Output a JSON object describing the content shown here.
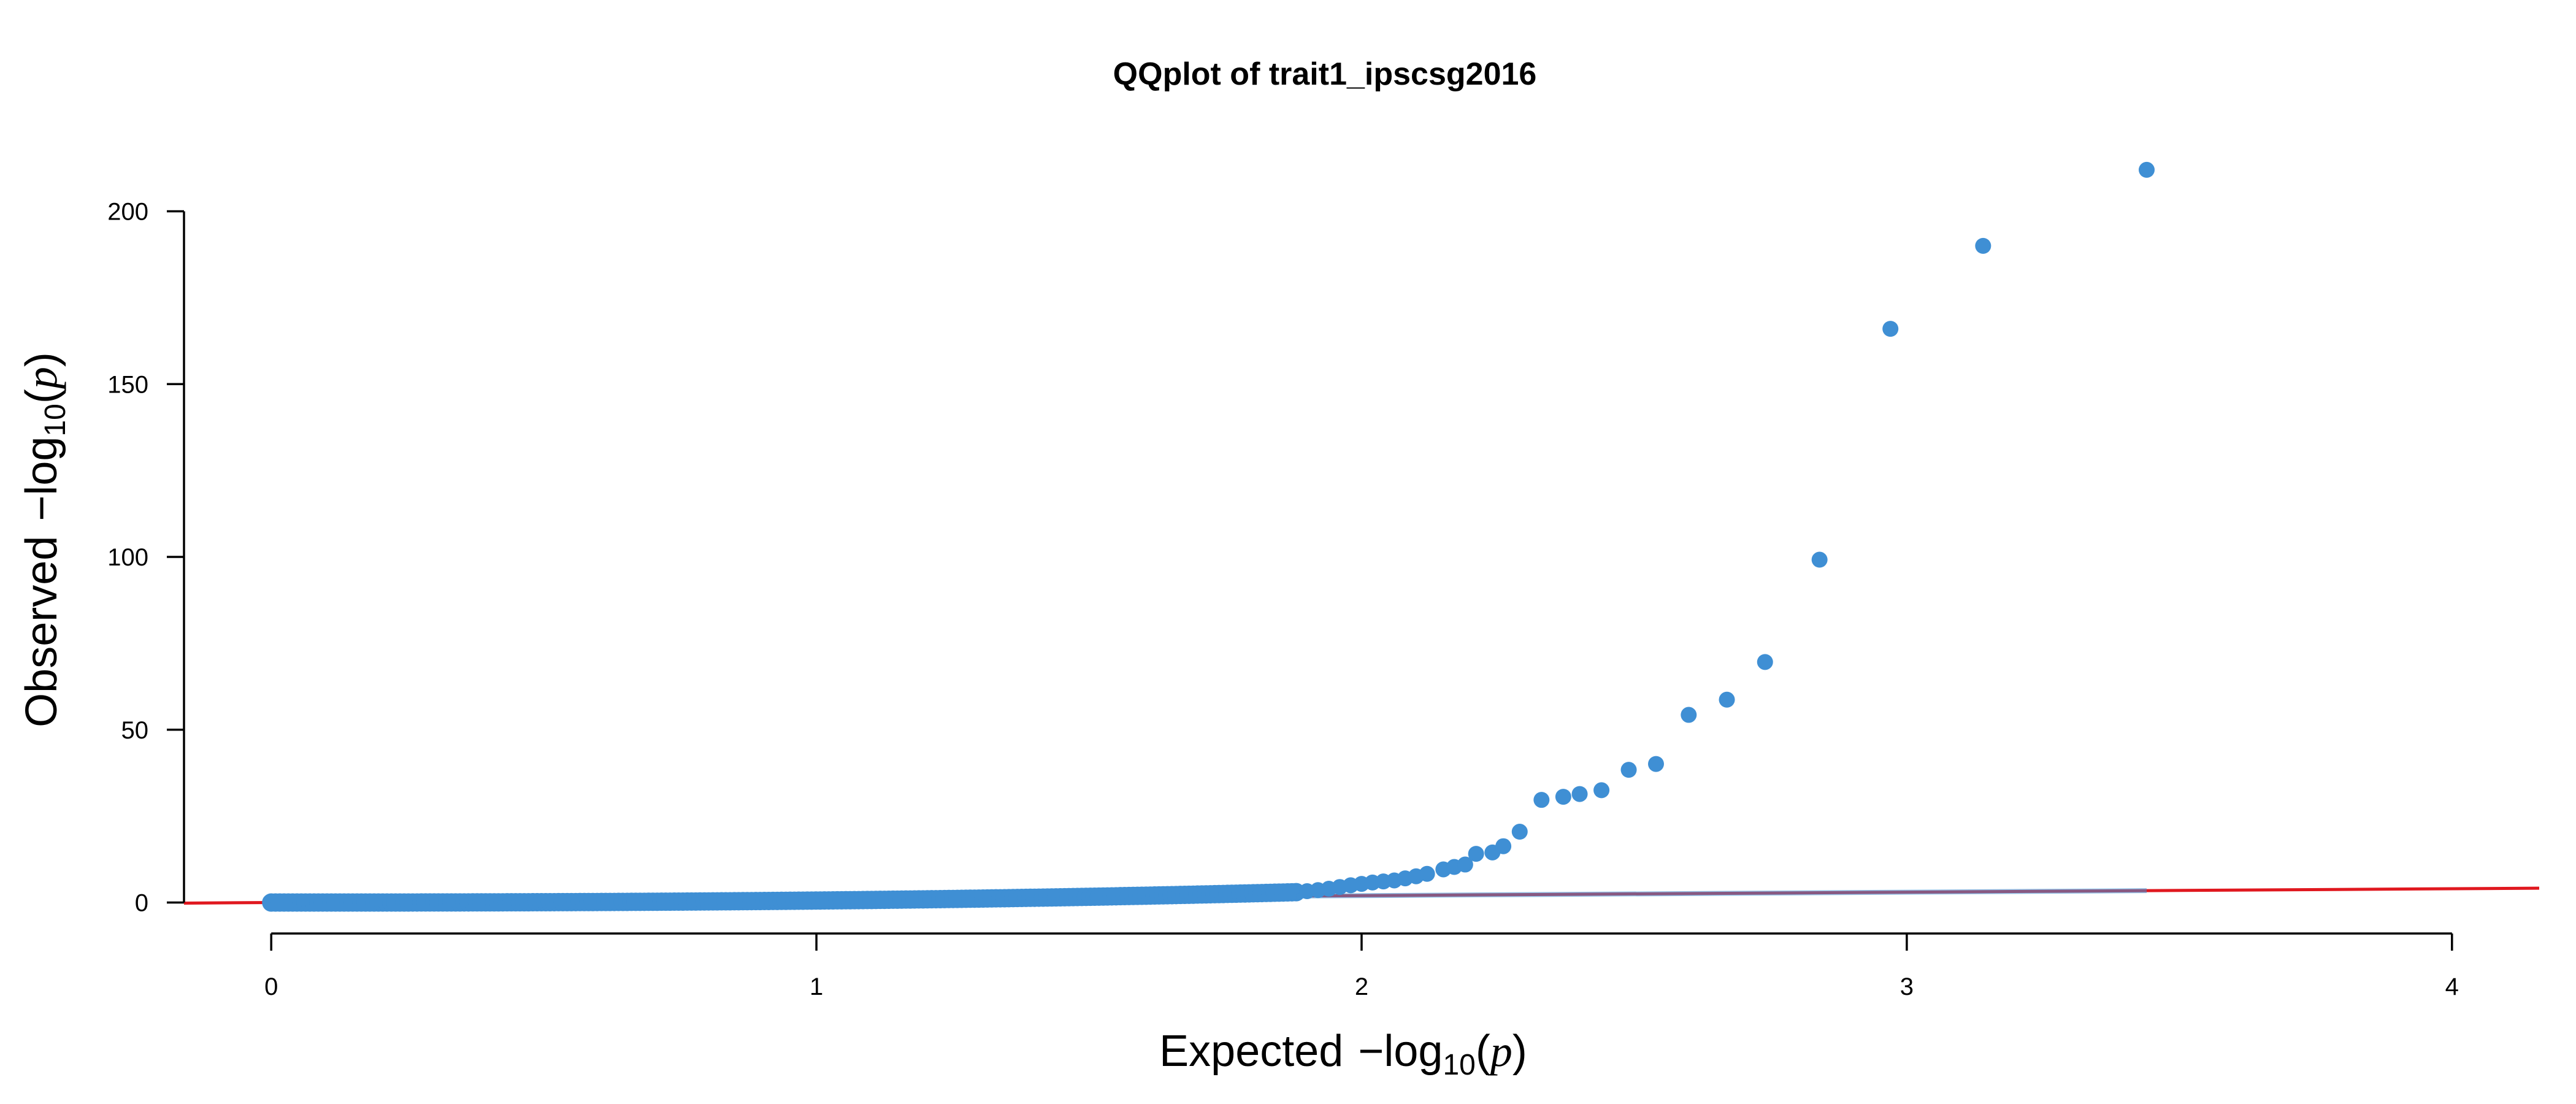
{
  "chart_data": {
    "type": "scatter",
    "title": "QQplot of trait1_ipscsg2016",
    "xlabel": {
      "prefix": "Expected",
      "fn": "log",
      "sub": "10",
      "var": "p"
    },
    "ylabel": {
      "prefix": "Observed",
      "fn": "log",
      "sub": "10",
      "var": "p"
    },
    "xlim": [
      -0.16,
      4.16
    ],
    "ylim": [
      -1.5,
      215
    ],
    "x_ticks": [
      "0",
      "1",
      "2",
      "3",
      "4"
    ],
    "y_ticks": [
      "0",
      "50",
      "100",
      "150",
      "200"
    ],
    "x_tick_values": [
      0,
      1,
      2,
      3,
      4
    ],
    "y_tick_values": [
      0,
      50,
      100,
      150,
      200
    ],
    "point_color": "#3F8FD4",
    "reference_line_color": "#E0181F",
    "grid": false,
    "legend": "none",
    "reference_line": {
      "x": [
        -0.16,
        4.16
      ],
      "y": [
        -0.16,
        4.16
      ]
    },
    "dense_segment": {
      "x_start": 0,
      "x_end": 1.88,
      "y_start": 0,
      "y_end": 3.0,
      "curve_exponent": 2.6,
      "count": 240
    },
    "expected_band": {
      "x": [
        1.88,
        3.44
      ],
      "y": [
        1.88,
        3.44
      ]
    },
    "points": [
      {
        "x": 1.9,
        "y": 3.3
      },
      {
        "x": 1.92,
        "y": 3.6
      },
      {
        "x": 1.94,
        "y": 4.0
      },
      {
        "x": 1.96,
        "y": 4.5
      },
      {
        "x": 1.98,
        "y": 5.0
      },
      {
        "x": 2.0,
        "y": 5.4
      },
      {
        "x": 2.02,
        "y": 5.8
      },
      {
        "x": 2.04,
        "y": 6.1
      },
      {
        "x": 2.06,
        "y": 6.4
      },
      {
        "x": 2.08,
        "y": 7.0
      },
      {
        "x": 2.1,
        "y": 7.6
      },
      {
        "x": 2.12,
        "y": 8.3
      },
      {
        "x": 2.15,
        "y": 9.6
      },
      {
        "x": 2.17,
        "y": 10.3
      },
      {
        "x": 2.19,
        "y": 11.0
      },
      {
        "x": 2.21,
        "y": 14.1
      },
      {
        "x": 2.24,
        "y": 14.5
      },
      {
        "x": 2.26,
        "y": 16.3
      },
      {
        "x": 2.29,
        "y": 20.5
      },
      {
        "x": 2.33,
        "y": 29.7
      },
      {
        "x": 2.37,
        "y": 30.6
      },
      {
        "x": 2.4,
        "y": 31.4
      },
      {
        "x": 2.44,
        "y": 32.5
      },
      {
        "x": 2.49,
        "y": 38.4
      },
      {
        "x": 2.54,
        "y": 40.1
      },
      {
        "x": 2.6,
        "y": 54.3
      },
      {
        "x": 2.67,
        "y": 58.7
      },
      {
        "x": 2.74,
        "y": 69.6
      },
      {
        "x": 2.84,
        "y": 99.2
      },
      {
        "x": 2.97,
        "y": 166.0
      },
      {
        "x": 3.14,
        "y": 190.0
      },
      {
        "x": 3.44,
        "y": 212.0
      }
    ]
  }
}
